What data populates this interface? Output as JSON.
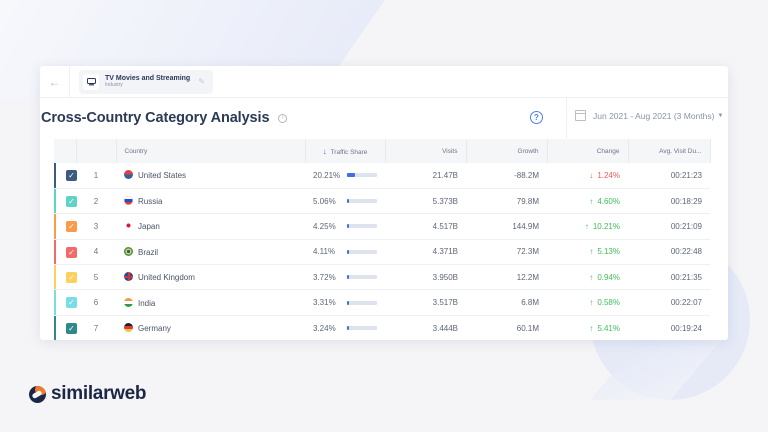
{
  "colors": {
    "accent": "#3f6fe0",
    "down": "#f05a5a",
    "up": "#3cbf5c",
    "brand_dark": "#1b2845",
    "brand_orange": "#f07a2c"
  },
  "topbar": {
    "back_icon": "arrow-left-icon",
    "breadcrumb": {
      "icon": "tv-icon",
      "title": "TV Movies and Streaming",
      "subtitle": "Industry",
      "edit_icon": "pencil-icon"
    }
  },
  "header": {
    "title": "Cross-Country Category Analysis",
    "info_icon": "info-icon",
    "help_icon": "help-circle-icon",
    "date_range": "Jun 2021 - Aug 2021 (3 Months)"
  },
  "table": {
    "columns": {
      "country": "Country",
      "traffic_share": "Traffic Share",
      "visits": "Visits",
      "growth": "Growth",
      "change": "Change",
      "avg_visit_duration": "Avg. Visit Du..."
    },
    "sort": {
      "column": "traffic_share",
      "direction": "desc"
    },
    "rows": [
      {
        "rank": "1",
        "country": "United States",
        "share": "20.21%",
        "share_pct": 20.21,
        "visits": "21.47B",
        "growth": "-88.2M",
        "change_dir": "down",
        "change": "1.24%",
        "duration": "00:21:23",
        "color": "#3d5a80"
      },
      {
        "rank": "2",
        "country": "Russia",
        "share": "5.06%",
        "share_pct": 5.06,
        "visits": "5.373B",
        "growth": "79.8M",
        "change_dir": "up",
        "change": "4.60%",
        "duration": "00:18:29",
        "color": "#5fd3c7"
      },
      {
        "rank": "3",
        "country": "Japan",
        "share": "4.25%",
        "share_pct": 4.25,
        "visits": "4.517B",
        "growth": "144.9M",
        "change_dir": "up",
        "change": "10.21%",
        "duration": "00:21:09",
        "color": "#fb9a48"
      },
      {
        "rank": "4",
        "country": "Brazil",
        "share": "4.11%",
        "share_pct": 4.11,
        "visits": "4.371B",
        "growth": "72.3M",
        "change_dir": "up",
        "change": "5.13%",
        "duration": "00:22:48",
        "color": "#f26a6a"
      },
      {
        "rank": "5",
        "country": "United Kingdom",
        "share": "3.72%",
        "share_pct": 3.72,
        "visits": "3.950B",
        "growth": "12.2M",
        "change_dir": "up",
        "change": "0.94%",
        "duration": "00:21:35",
        "color": "#fcd05a"
      },
      {
        "rank": "6",
        "country": "India",
        "share": "3.31%",
        "share_pct": 3.31,
        "visits": "3.517B",
        "growth": "6.8M",
        "change_dir": "up",
        "change": "0.58%",
        "duration": "00:22:07",
        "color": "#78dde4"
      },
      {
        "rank": "7",
        "country": "Germany",
        "share": "3.24%",
        "share_pct": 3.24,
        "visits": "3.444B",
        "growth": "60.1M",
        "change_dir": "up",
        "change": "5.41%",
        "duration": "00:19:24",
        "color": "#2e8a8a"
      }
    ]
  },
  "footer": {
    "brand": "similarweb"
  }
}
